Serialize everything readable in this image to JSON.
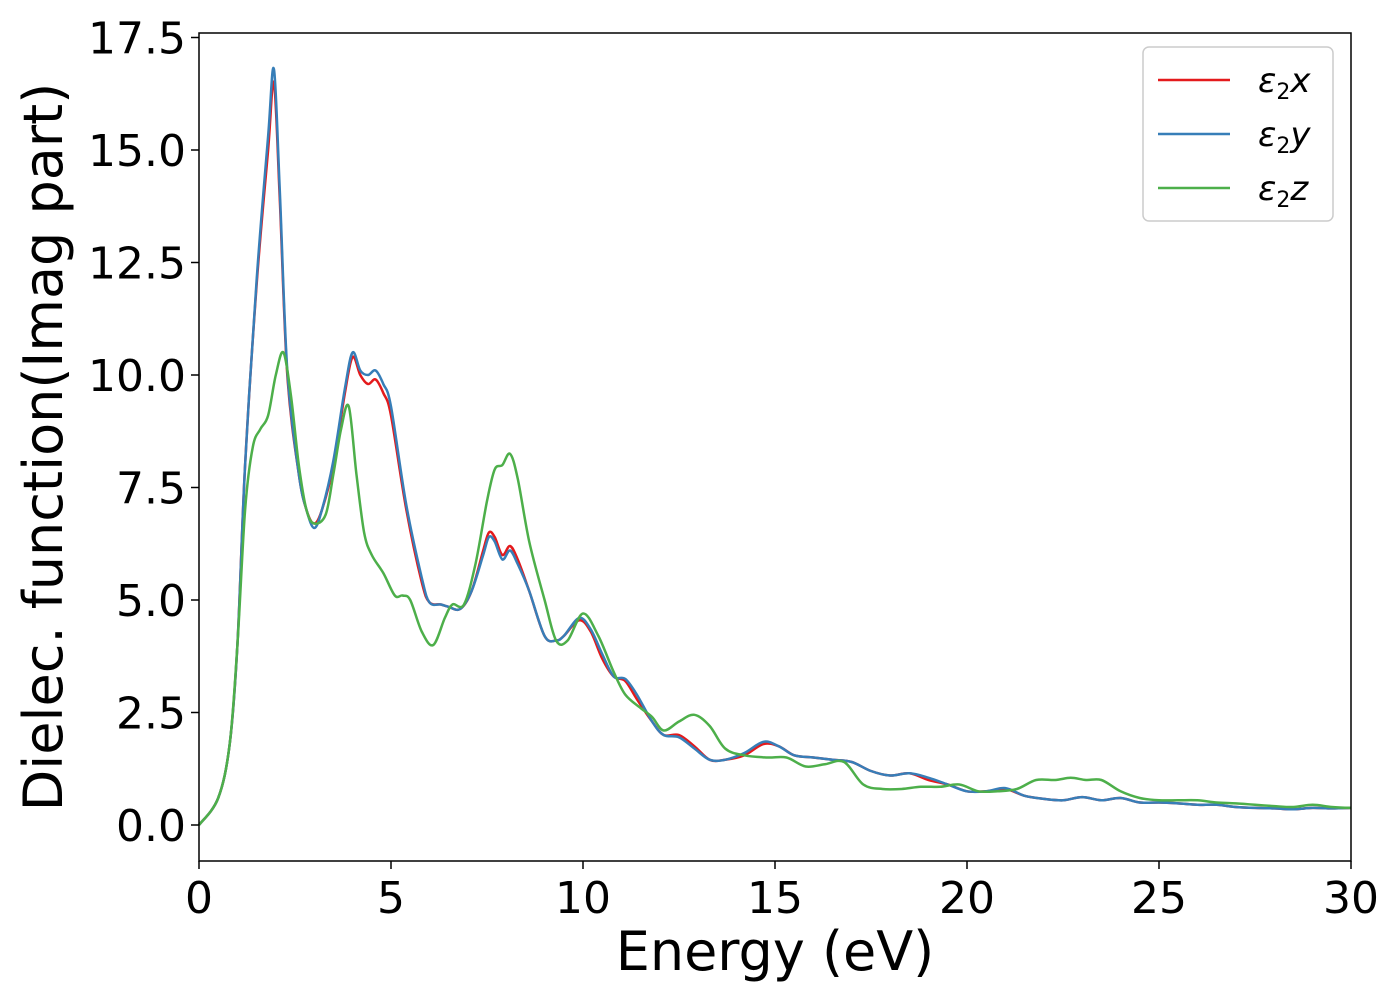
{
  "chart_data": {
    "type": "line",
    "xlabel": "Energy (eV)",
    "ylabel": "Dielec. function(Imag part)",
    "xlim": [
      0,
      30
    ],
    "ylim": [
      -0.8,
      17.6
    ],
    "xticks": [
      0,
      5,
      10,
      15,
      20,
      25,
      30
    ],
    "xtick_labels": [
      "0",
      "5",
      "10",
      "15",
      "20",
      "25",
      "30"
    ],
    "yticks": [
      0,
      2.5,
      5,
      7.5,
      10,
      12.5,
      15,
      17.5
    ],
    "ytick_labels": [
      "0.0",
      "2.5",
      "5.0",
      "7.5",
      "10.0",
      "12.5",
      "15.0",
      "17.5"
    ],
    "grid": false,
    "legend_position": "top-right",
    "series": [
      {
        "name": "ε2x",
        "legend_base": "ε",
        "legend_sub": "2",
        "legend_var": "x",
        "color": "#e41a1c",
        "x": [
          0,
          0.5,
          0.8,
          1.0,
          1.2,
          1.5,
          1.8,
          1.95,
          2.1,
          2.3,
          2.6,
          2.8,
          3.0,
          3.2,
          3.5,
          3.8,
          4.0,
          4.2,
          4.4,
          4.6,
          4.8,
          5.0,
          5.4,
          5.8,
          6.0,
          6.3,
          6.5,
          6.8,
          7.1,
          7.4,
          7.55,
          7.7,
          7.9,
          8.1,
          8.3,
          8.6,
          9.0,
          9.3,
          9.5,
          9.9,
          10.2,
          10.5,
          10.8,
          11.1,
          11.4,
          11.8,
          12.1,
          12.5,
          12.9,
          13.3,
          13.7,
          14.2,
          14.7,
          15.1,
          15.5,
          16.0,
          16.5,
          17.0,
          17.5,
          18.0,
          18.5,
          19.0,
          19.5,
          20.0,
          20.5,
          21.0,
          21.5,
          22.0,
          22.5,
          23.0,
          23.5,
          24.0,
          24.5,
          25.0,
          25.5,
          26.0,
          26.5,
          27.0,
          27.5,
          28.0,
          28.5,
          29.0,
          29.5,
          30.0
        ],
        "y": [
          0.0,
          0.6,
          1.8,
          4.0,
          8.0,
          12.0,
          15.0,
          16.5,
          14.0,
          10.0,
          7.8,
          7.0,
          6.7,
          7.0,
          8.0,
          9.6,
          10.4,
          10.0,
          9.8,
          9.9,
          9.6,
          9.1,
          7.0,
          5.4,
          4.95,
          4.9,
          4.85,
          4.8,
          5.2,
          6.1,
          6.5,
          6.4,
          6.0,
          6.2,
          5.9,
          5.2,
          4.2,
          4.1,
          4.2,
          4.55,
          4.3,
          3.7,
          3.3,
          3.2,
          2.8,
          2.3,
          2.0,
          2.0,
          1.75,
          1.45,
          1.45,
          1.55,
          1.8,
          1.75,
          1.55,
          1.5,
          1.45,
          1.4,
          1.2,
          1.1,
          1.15,
          1.0,
          0.9,
          0.75,
          0.75,
          0.8,
          0.65,
          0.58,
          0.55,
          0.62,
          0.55,
          0.6,
          0.5,
          0.5,
          0.48,
          0.45,
          0.45,
          0.4,
          0.38,
          0.37,
          0.35,
          0.38,
          0.37,
          0.38
        ]
      },
      {
        "name": "ε2y",
        "legend_base": "ε",
        "legend_sub": "2",
        "legend_var": "y",
        "color": "#377eb8",
        "x": [
          0,
          0.5,
          0.8,
          1.0,
          1.2,
          1.5,
          1.8,
          1.95,
          2.1,
          2.3,
          2.6,
          2.8,
          3.0,
          3.2,
          3.5,
          3.8,
          4.0,
          4.2,
          4.4,
          4.6,
          4.8,
          5.0,
          5.4,
          5.8,
          6.0,
          6.3,
          6.5,
          6.8,
          7.1,
          7.4,
          7.55,
          7.7,
          7.9,
          8.1,
          8.3,
          8.6,
          9.0,
          9.3,
          9.5,
          9.9,
          10.2,
          10.5,
          10.8,
          11.1,
          11.4,
          11.8,
          12.1,
          12.5,
          12.9,
          13.3,
          13.7,
          14.2,
          14.7,
          15.1,
          15.5,
          16.0,
          16.5,
          17.0,
          17.5,
          18.0,
          18.5,
          19.0,
          19.5,
          20.0,
          20.5,
          21.0,
          21.5,
          22.0,
          22.5,
          23.0,
          23.5,
          24.0,
          24.5,
          25.0,
          25.5,
          26.0,
          26.5,
          27.0,
          27.5,
          28.0,
          28.5,
          29.0,
          29.5,
          30.0
        ],
        "y": [
          0.0,
          0.6,
          1.8,
          4.0,
          8.0,
          12.1,
          15.3,
          16.8,
          14.2,
          10.1,
          7.8,
          7.0,
          6.6,
          7.0,
          8.1,
          9.7,
          10.5,
          10.1,
          10.0,
          10.1,
          9.8,
          9.3,
          7.1,
          5.5,
          4.95,
          4.9,
          4.85,
          4.8,
          5.2,
          6.0,
          6.4,
          6.3,
          5.9,
          6.1,
          5.8,
          5.2,
          4.2,
          4.1,
          4.2,
          4.6,
          4.35,
          3.8,
          3.3,
          3.25,
          2.9,
          2.3,
          2.0,
          1.95,
          1.7,
          1.45,
          1.45,
          1.6,
          1.85,
          1.75,
          1.55,
          1.5,
          1.45,
          1.4,
          1.2,
          1.1,
          1.15,
          1.05,
          0.9,
          0.75,
          0.75,
          0.82,
          0.65,
          0.58,
          0.55,
          0.62,
          0.55,
          0.6,
          0.5,
          0.5,
          0.48,
          0.45,
          0.45,
          0.4,
          0.38,
          0.37,
          0.35,
          0.38,
          0.37,
          0.38
        ]
      },
      {
        "name": "ε2z",
        "legend_base": "ε",
        "legend_sub": "2",
        "legend_var": "z",
        "color": "#4daf4a",
        "x": [
          0,
          0.5,
          0.8,
          1.0,
          1.2,
          1.4,
          1.6,
          1.8,
          2.0,
          2.2,
          2.4,
          2.6,
          2.8,
          3.0,
          3.3,
          3.5,
          3.7,
          3.9,
          4.1,
          4.3,
          4.5,
          4.8,
          5.1,
          5.3,
          5.5,
          5.8,
          6.1,
          6.4,
          6.6,
          6.9,
          7.2,
          7.5,
          7.7,
          7.9,
          8.1,
          8.3,
          8.6,
          9.0,
          9.3,
          9.6,
          10.0,
          10.4,
          10.8,
          11.1,
          11.5,
          11.8,
          12.1,
          12.5,
          12.9,
          13.3,
          13.7,
          14.2,
          14.8,
          15.3,
          15.8,
          16.3,
          16.8,
          17.3,
          17.8,
          18.3,
          18.8,
          19.3,
          19.8,
          20.3,
          20.8,
          21.3,
          21.8,
          22.3,
          22.7,
          23.1,
          23.5,
          24.0,
          24.5,
          25.0,
          25.5,
          26.0,
          26.5,
          27.0,
          27.5,
          28.0,
          28.5,
          29.0,
          29.5,
          30.0
        ],
        "y": [
          0.0,
          0.6,
          1.8,
          4.0,
          7.0,
          8.4,
          8.8,
          9.1,
          10.0,
          10.5,
          9.5,
          8.0,
          7.0,
          6.7,
          6.9,
          7.8,
          8.8,
          9.3,
          7.8,
          6.5,
          6.0,
          5.6,
          5.1,
          5.1,
          5.0,
          4.3,
          4.0,
          4.6,
          4.9,
          4.9,
          5.8,
          7.2,
          7.9,
          8.0,
          8.25,
          7.7,
          6.3,
          5.0,
          4.1,
          4.1,
          4.7,
          4.2,
          3.4,
          2.9,
          2.6,
          2.4,
          2.1,
          2.3,
          2.45,
          2.2,
          1.7,
          1.55,
          1.5,
          1.5,
          1.3,
          1.35,
          1.4,
          0.9,
          0.8,
          0.8,
          0.85,
          0.85,
          0.9,
          0.75,
          0.75,
          0.8,
          1.0,
          1.0,
          1.05,
          1.0,
          1.0,
          0.75,
          0.6,
          0.55,
          0.55,
          0.55,
          0.5,
          0.48,
          0.45,
          0.42,
          0.4,
          0.45,
          0.4,
          0.38
        ]
      }
    ]
  }
}
